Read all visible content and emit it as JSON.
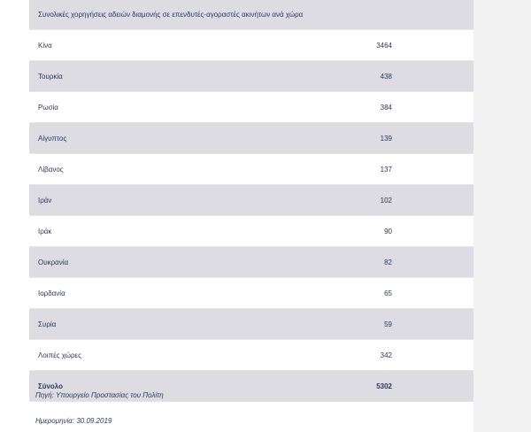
{
  "table": {
    "title": "Συνολικές χορηγήσεις αδειών διαμονής σε επενδυτές-αγοραστές ακινήτων ανά χώρα",
    "rows": [
      {
        "country": "Κίνα",
        "value": "3464"
      },
      {
        "country": "Τουρκία",
        "value": "438"
      },
      {
        "country": "Ρωσία",
        "value": "384"
      },
      {
        "country": "Αίγυπτος",
        "value": "139"
      },
      {
        "country": "Λίβανος",
        "value": "137"
      },
      {
        "country": "Ιράν",
        "value": "102"
      },
      {
        "country": "Ιράκ",
        "value": "90"
      },
      {
        "country": "Ουκρανία",
        "value": "82"
      },
      {
        "country": "Ιορδανία",
        "value": "65"
      },
      {
        "country": "Συρία",
        "value": "59"
      },
      {
        "country": "Λοιπές χώρες",
        "value": "342"
      }
    ],
    "total_label": "Σύνολο",
    "total_value": "5302"
  },
  "footer": {
    "source": "Πηγή: Υπουργείο Προστασίας του Πολίτη",
    "date": "Ημερομηνία: 30.09.2019"
  }
}
